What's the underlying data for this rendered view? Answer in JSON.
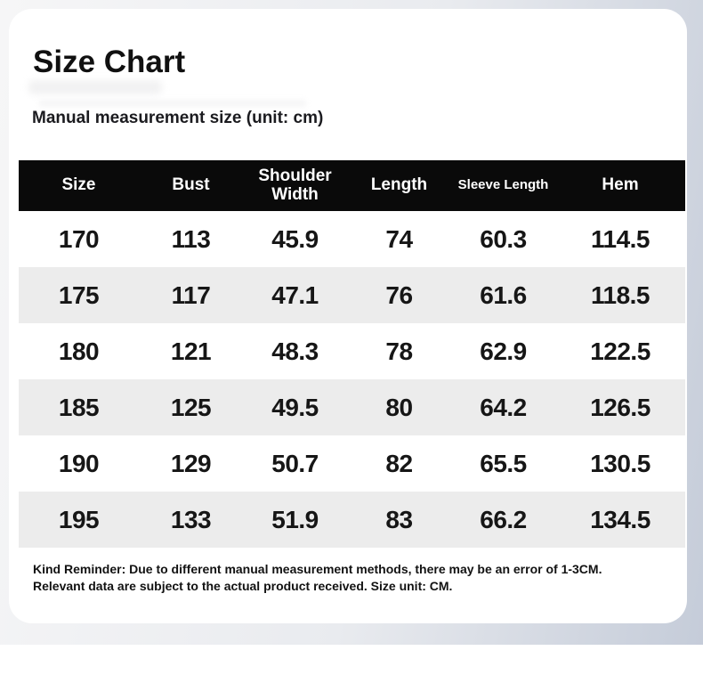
{
  "page": {
    "title": "Size Chart",
    "subtitle": "Manual measurement size (unit: cm)",
    "reminder_line1": "Kind Reminder: Due to different manual measurement methods, there may be an error of 1-3CM.",
    "reminder_line2": "Relevant data are subject to the actual product received. Size unit: CM."
  },
  "table": {
    "columns": [
      "Size",
      "Bust",
      "Shoulder Width",
      "Length",
      "Sleeve Length",
      "Hem"
    ],
    "rows": [
      [
        "170",
        "113",
        "45.9",
        "74",
        "60.3",
        "114.5"
      ],
      [
        "175",
        "117",
        "47.1",
        "76",
        "61.6",
        "118.5"
      ],
      [
        "180",
        "121",
        "48.3",
        "78",
        "62.9",
        "122.5"
      ],
      [
        "185",
        "125",
        "49.5",
        "80",
        "64.2",
        "126.5"
      ],
      [
        "190",
        "129",
        "50.7",
        "82",
        "65.5",
        "130.5"
      ],
      [
        "195",
        "133",
        "51.9",
        "83",
        "66.2",
        "134.5"
      ]
    ]
  },
  "colors": {
    "header_bg": "#0a0a0a",
    "row_alt": "#ececec",
    "bg_left": "#f6f6f7",
    "bg_right": "#c5ccd9",
    "card_bg": "#ffffff",
    "text": "#141414"
  }
}
